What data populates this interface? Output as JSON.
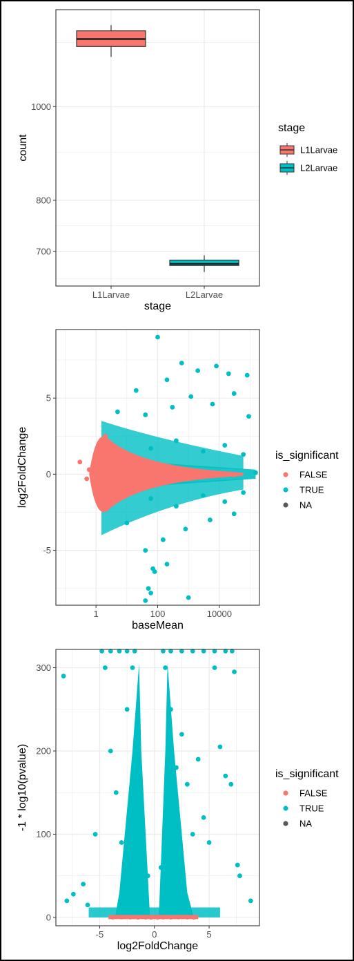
{
  "chart_data": [
    {
      "type": "box",
      "xlabel": "stage",
      "ylabel": "count",
      "categories": [
        "L1Larvae",
        "L2Larvae"
      ],
      "yscale": "sqrt",
      "ylim": [
        662,
        1192
      ],
      "yticks": [
        700,
        800,
        1000
      ],
      "boxes": [
        {
          "category": "L1Larvae",
          "min": 1115,
          "q1": 1140,
          "median": 1158,
          "q3": 1178,
          "max": 1192,
          "color": "#F8766D"
        },
        {
          "category": "L2Larvae",
          "min": 662,
          "q1": 674,
          "median": 677,
          "q3": 684,
          "max": 693,
          "color": "#00BFC4"
        }
      ],
      "legend": {
        "title": "stage",
        "entries": [
          "L1Larvae",
          "L2Larvae"
        ],
        "position": "right"
      },
      "grid": true
    },
    {
      "type": "scatter",
      "xlabel": "baseMean",
      "ylabel": "log2FoldChange",
      "xscale": "log10",
      "xlim": [
        0.05,
        200000
      ],
      "ylim": [
        -8.6,
        9.5
      ],
      "xticks": [
        1,
        100,
        10000
      ],
      "xticklabels": [
        "1",
        "100",
        "10000"
      ],
      "yticks": [
        -5,
        0,
        5
      ],
      "series": [
        {
          "name": "FALSE",
          "color": "#F8766D",
          "points": [
            [
              0.3,
              0.8
            ],
            [
              0.5,
              -0.3
            ],
            [
              0.6,
              0.3
            ],
            [
              0.8,
              -0.4
            ],
            [
              1,
              0.6
            ],
            [
              1,
              -0.5
            ],
            [
              1.5,
              1.8
            ],
            [
              1.5,
              -1.9
            ],
            [
              2,
              2.5
            ],
            [
              2,
              -2.3
            ],
            [
              3,
              1.2
            ],
            [
              3,
              -1.4
            ],
            [
              5,
              0.9
            ],
            [
              5,
              -0.7
            ],
            [
              8,
              0.5
            ],
            [
              8,
              -0.6
            ],
            [
              15,
              0.3
            ],
            [
              15,
              -0.4
            ],
            [
              40,
              0.1
            ],
            [
              40,
              -0.2
            ],
            [
              150,
              0.2
            ],
            [
              400,
              -0.1
            ],
            [
              1500,
              0.05
            ],
            [
              6000,
              0.1
            ],
            [
              30000,
              -0.05
            ]
          ]
        },
        {
          "name": "TRUE",
          "color": "#00BFC4",
          "points": [
            [
              100,
              9
            ],
            [
              200,
              6.2
            ],
            [
              600,
              7.3
            ],
            [
              2000,
              6.8
            ],
            [
              8000,
              7.1
            ],
            [
              20000,
              6.6
            ],
            [
              80000,
              6.5
            ],
            [
              5,
              4.1
            ],
            [
              20,
              5.5
            ],
            [
              40,
              3.9
            ],
            [
              300,
              4.4
            ],
            [
              1200,
              5.1
            ],
            [
              6000,
              4.6
            ],
            [
              30000,
              5.3
            ],
            [
              90000,
              3.8
            ],
            [
              60,
              1.7
            ],
            [
              400,
              2.2
            ],
            [
              3000,
              1.5
            ],
            [
              15000,
              1.9
            ],
            [
              60000,
              1.3
            ],
            [
              150000,
              0.1
            ],
            [
              60,
              -1.6
            ],
            [
              400,
              -2.1
            ],
            [
              3000,
              -1.4
            ],
            [
              15000,
              -1.8
            ],
            [
              60000,
              -1.2
            ],
            [
              10,
              -3.2
            ],
            [
              40,
              -5.0
            ],
            [
              150,
              -4.3
            ],
            [
              800,
              -3.6
            ],
            [
              5000,
              -3.0
            ],
            [
              30000,
              -2.6
            ],
            [
              70,
              -6.2
            ],
            [
              80,
              -6.4
            ],
            [
              50,
              -7.5
            ],
            [
              40,
              -8.3
            ],
            [
              60,
              -7.8
            ],
            [
              1000,
              -8.1
            ],
            [
              200,
              -5.9
            ]
          ]
        },
        {
          "name": "NA",
          "color": "#595959",
          "points": []
        }
      ],
      "legend": {
        "title": "is_significant",
        "entries": [
          "FALSE",
          "TRUE",
          "NA"
        ],
        "position": "right"
      },
      "grid": true
    },
    {
      "type": "scatter",
      "xlabel": "log2FoldChange",
      "ylabel": "-1 * log10(pvalue)",
      "xlim": [
        -9,
        9.6
      ],
      "ylim": [
        -10,
        322
      ],
      "xticks": [
        -5,
        0,
        5
      ],
      "yticks": [
        0,
        100,
        200,
        300
      ],
      "series": [
        {
          "name": "FALSE",
          "color": "#F8766D",
          "points": [
            [
              -3.8,
              0.3
            ],
            [
              -3,
              0.5
            ],
            [
              -2.2,
              0.4
            ],
            [
              -1.5,
              0.2
            ],
            [
              -0.8,
              0.3
            ],
            [
              -0.3,
              0.1
            ],
            [
              0.3,
              0.2
            ],
            [
              0.8,
              0.4
            ],
            [
              1.5,
              0.3
            ],
            [
              2.2,
              0.5
            ],
            [
              3,
              0.4
            ],
            [
              3.6,
              0.2
            ]
          ]
        },
        {
          "name": "TRUE",
          "color": "#00BFC4",
          "points": [
            [
              -8.3,
              290
            ],
            [
              -8.0,
              20
            ],
            [
              -7.4,
              28
            ],
            [
              -6.5,
              40
            ],
            [
              -6.1,
              15
            ],
            [
              -5.4,
              100
            ],
            [
              -4.5,
              300
            ],
            [
              -4,
              200
            ],
            [
              -3.5,
              150
            ],
            [
              -3,
              90
            ],
            [
              -2.5,
              250
            ],
            [
              -2,
              300
            ],
            [
              -1.5,
              200
            ],
            [
              -1,
              100
            ],
            [
              -0.6,
              50
            ],
            [
              0.6,
              60
            ],
            [
              1,
              300
            ],
            [
              1.5,
              250
            ],
            [
              2,
              180
            ],
            [
              2.5,
              220
            ],
            [
              3,
              160
            ],
            [
              3.5,
              100
            ],
            [
              4,
              190
            ],
            [
              4.5,
              120
            ],
            [
              5,
              90
            ],
            [
              5.5,
              300
            ],
            [
              6,
              205
            ],
            [
              6.5,
              170
            ],
            [
              7,
              160
            ],
            [
              7.3,
              295
            ],
            [
              7.6,
              63
            ],
            [
              7.8,
              50
            ],
            [
              8.8,
              20
            ],
            [
              -4.8,
              320
            ],
            [
              -4,
              320
            ],
            [
              -3.2,
              320
            ],
            [
              -2.5,
              320
            ],
            [
              -1.8,
              320
            ],
            [
              0.8,
              320
            ],
            [
              1.5,
              320
            ],
            [
              2.5,
              320
            ],
            [
              3.5,
              320
            ],
            [
              4.5,
              320
            ],
            [
              5.5,
              320
            ],
            [
              6.5,
              320
            ],
            [
              7.1,
              320
            ]
          ]
        },
        {
          "name": "NA",
          "color": "#595959",
          "points": []
        }
      ],
      "legend": {
        "title": "is_significant",
        "entries": [
          "FALSE",
          "TRUE",
          "NA"
        ],
        "position": "right"
      },
      "grid": true
    }
  ]
}
